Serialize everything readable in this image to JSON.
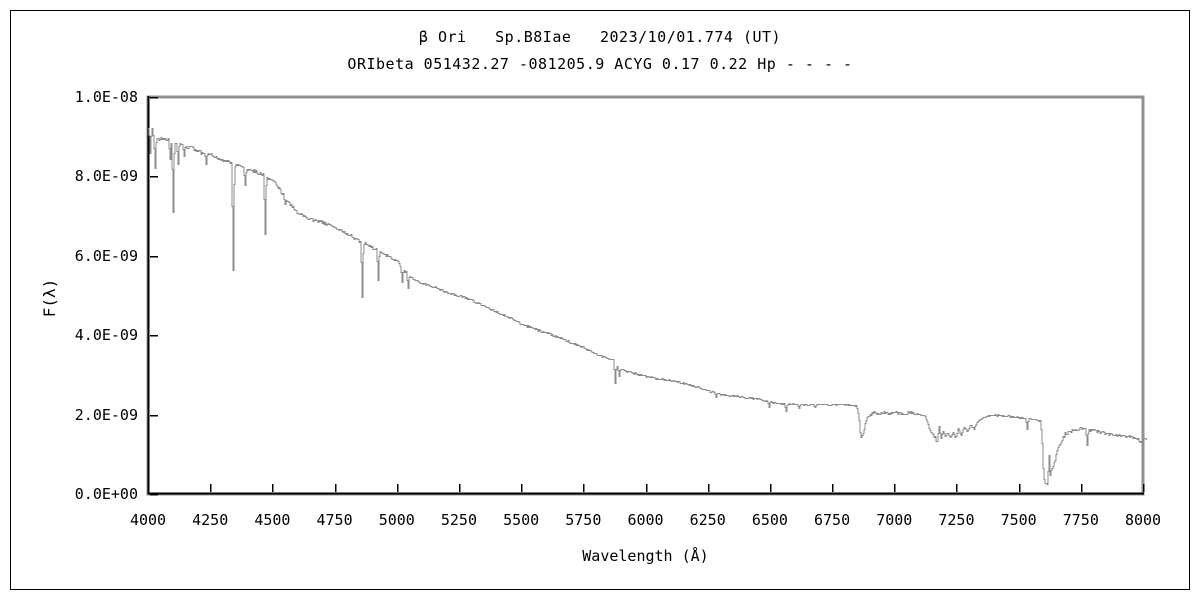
{
  "window": {
    "background": "#ffffff",
    "border_color": "#000000",
    "text_color": "#000000"
  },
  "chart_data": {
    "type": "line",
    "title": "β Ori   Sp.B8Iae   2023/10/01.774 (UT)",
    "subtitle": "ORIbeta 051432.27 -081205.9 ACYG 0.17 0.22 Hp - - - -",
    "xlabel": "Wavelength (Å)",
    "ylabel": "F(λ)",
    "xlim": [
      4000,
      8000
    ],
    "ylim": [
      0,
      1e-08
    ],
    "x_ticks": [
      4000,
      4250,
      4500,
      4750,
      5000,
      5250,
      5500,
      5750,
      6000,
      6250,
      6500,
      6750,
      7000,
      7250,
      7500,
      7750,
      8000
    ],
    "y_ticks": [
      {
        "value": 0,
        "label": "0.0E+00"
      },
      {
        "value": 2e-09,
        "label": "2.0E-09"
      },
      {
        "value": 4e-09,
        "label": "4.0E-09"
      },
      {
        "value": 6e-09,
        "label": "6.0E-09"
      },
      {
        "value": 8e-09,
        "label": "8.0E-09"
      },
      {
        "value": 1e-08,
        "label": "1.0E-08"
      }
    ],
    "grid": false,
    "legend": false,
    "line_color": "#8c8c8c",
    "frame_color": "#909090",
    "axis_color": "#000000",
    "flux_scale": 1e-09,
    "continuum_points": [
      [
        4000,
        9.3
      ],
      [
        4008,
        9.0
      ],
      [
        4016,
        9.2
      ],
      [
        4024,
        8.95
      ],
      [
        4032,
        9.05
      ],
      [
        4040,
        8.9
      ],
      [
        4048,
        9.0
      ],
      [
        4056,
        8.92
      ],
      [
        4064,
        8.96
      ],
      [
        4080,
        8.92
      ],
      [
        4100,
        8.88
      ],
      [
        4120,
        8.84
      ],
      [
        4140,
        8.8
      ],
      [
        4160,
        8.76
      ],
      [
        4180,
        8.7
      ],
      [
        4200,
        8.64
      ],
      [
        4225,
        8.6
      ],
      [
        4250,
        8.56
      ],
      [
        4275,
        8.48
      ],
      [
        4300,
        8.42
      ],
      [
        4330,
        8.36
      ],
      [
        4360,
        8.28
      ],
      [
        4390,
        8.22
      ],
      [
        4420,
        8.16
      ],
      [
        4450,
        8.08
      ],
      [
        4480,
        8.0
      ],
      [
        4500,
        7.92
      ],
      [
        4520,
        7.78
      ],
      [
        4540,
        7.58
      ],
      [
        4560,
        7.42
      ],
      [
        4580,
        7.25
      ],
      [
        4605,
        7.08
      ],
      [
        4630,
        7.0
      ],
      [
        4660,
        6.92
      ],
      [
        4700,
        6.85
      ],
      [
        4740,
        6.76
      ],
      [
        4780,
        6.62
      ],
      [
        4820,
        6.5
      ],
      [
        4850,
        6.38
      ],
      [
        4880,
        6.28
      ],
      [
        4910,
        6.18
      ],
      [
        4940,
        6.08
      ],
      [
        4970,
        5.98
      ],
      [
        5000,
        5.88
      ],
      [
        5030,
        5.62
      ],
      [
        5060,
        5.45
      ],
      [
        5100,
        5.32
      ],
      [
        5150,
        5.22
      ],
      [
        5200,
        5.08
      ],
      [
        5250,
        5.0
      ],
      [
        5300,
        4.9
      ],
      [
        5350,
        4.75
      ],
      [
        5400,
        4.6
      ],
      [
        5450,
        4.46
      ],
      [
        5500,
        4.3
      ],
      [
        5540,
        4.2
      ],
      [
        5580,
        4.1
      ],
      [
        5620,
        4.02
      ],
      [
        5660,
        3.93
      ],
      [
        5700,
        3.83
      ],
      [
        5740,
        3.72
      ],
      [
        5780,
        3.6
      ],
      [
        5820,
        3.47
      ],
      [
        5855,
        3.4
      ],
      [
        5870,
        3.37
      ],
      [
        5882,
        3.25
      ],
      [
        5895,
        3.15
      ],
      [
        5915,
        3.1
      ],
      [
        5950,
        3.05
      ],
      [
        5985,
        3.0
      ],
      [
        6020,
        2.95
      ],
      [
        6060,
        2.9
      ],
      [
        6100,
        2.87
      ],
      [
        6150,
        2.8
      ],
      [
        6200,
        2.72
      ],
      [
        6250,
        2.62
      ],
      [
        6300,
        2.52
      ],
      [
        6350,
        2.48
      ],
      [
        6400,
        2.45
      ],
      [
        6450,
        2.4
      ],
      [
        6500,
        2.33
      ],
      [
        6540,
        2.28
      ],
      [
        6580,
        2.27
      ],
      [
        6620,
        2.26
      ],
      [
        6660,
        2.26
      ],
      [
        6700,
        2.27
      ],
      [
        6740,
        2.26
      ],
      [
        6780,
        2.26
      ],
      [
        6820,
        2.25
      ],
      [
        6850,
        2.23
      ],
      [
        6858,
        2.0
      ],
      [
        6864,
        1.55
      ],
      [
        6870,
        1.42
      ],
      [
        6876,
        1.52
      ],
      [
        6884,
        1.8
      ],
      [
        6892,
        1.95
      ],
      [
        6902,
        2.0
      ],
      [
        6920,
        2.06
      ],
      [
        6940,
        2.03
      ],
      [
        6960,
        2.06
      ],
      [
        6980,
        2.03
      ],
      [
        7005,
        2.06
      ],
      [
        7030,
        2.04
      ],
      [
        7060,
        2.06
      ],
      [
        7090,
        2.03
      ],
      [
        7115,
        2.0
      ],
      [
        7130,
        1.88
      ],
      [
        7145,
        1.6
      ],
      [
        7155,
        1.5
      ],
      [
        7164,
        1.42
      ],
      [
        7172,
        1.32
      ],
      [
        7180,
        1.68
      ],
      [
        7188,
        1.4
      ],
      [
        7196,
        1.6
      ],
      [
        7205,
        1.42
      ],
      [
        7215,
        1.56
      ],
      [
        7225,
        1.4
      ],
      [
        7235,
        1.6
      ],
      [
        7245,
        1.44
      ],
      [
        7256,
        1.65
      ],
      [
        7268,
        1.5
      ],
      [
        7280,
        1.7
      ],
      [
        7292,
        1.58
      ],
      [
        7305,
        1.75
      ],
      [
        7320,
        1.68
      ],
      [
        7336,
        1.85
      ],
      [
        7352,
        1.92
      ],
      [
        7376,
        1.98
      ],
      [
        7400,
        2.0
      ],
      [
        7430,
        1.98
      ],
      [
        7460,
        1.97
      ],
      [
        7492,
        1.95
      ],
      [
        7520,
        1.92
      ],
      [
        7548,
        1.9
      ],
      [
        7570,
        1.88
      ],
      [
        7586,
        1.84
      ],
      [
        7592,
        1.3
      ],
      [
        7597,
        0.5
      ],
      [
        7603,
        0.4
      ],
      [
        7609,
        0.28
      ],
      [
        7615,
        0.2
      ],
      [
        7619,
        0.35
      ],
      [
        7623,
        1.15
      ],
      [
        7627,
        0.48
      ],
      [
        7633,
        0.6
      ],
      [
        7641,
        0.75
      ],
      [
        7649,
        0.92
      ],
      [
        7657,
        1.1
      ],
      [
        7666,
        1.25
      ],
      [
        7676,
        1.4
      ],
      [
        7686,
        1.5
      ],
      [
        7700,
        1.56
      ],
      [
        7716,
        1.6
      ],
      [
        7732,
        1.63
      ],
      [
        7752,
        1.66
      ],
      [
        7772,
        1.67
      ],
      [
        7792,
        1.62
      ],
      [
        7815,
        1.58
      ],
      [
        7840,
        1.56
      ],
      [
        7865,
        1.52
      ],
      [
        7890,
        1.5
      ],
      [
        7915,
        1.48
      ],
      [
        7940,
        1.46
      ],
      [
        7965,
        1.42
      ],
      [
        7984,
        1.38
      ],
      [
        7996,
        1.33
      ],
      [
        8004,
        1.42
      ],
      [
        8016,
        1.39
      ]
    ],
    "absorption_lines": [
      [
        4009,
        8.6
      ],
      [
        4026,
        8.2
      ],
      [
        4089,
        8.45
      ],
      [
        4101,
        7.1
      ],
      [
        4121,
        8.3
      ],
      [
        4144,
        8.52
      ],
      [
        4233,
        8.32
      ],
      [
        4340,
        5.65
      ],
      [
        4388,
        7.78
      ],
      [
        4471,
        6.55
      ],
      [
        4553,
        7.3
      ],
      [
        4861,
        4.96
      ],
      [
        4922,
        5.4
      ],
      [
        5018,
        5.35
      ],
      [
        5042,
        5.18
      ],
      [
        5876,
        2.8
      ],
      [
        5890,
        2.98
      ],
      [
        6283,
        2.45
      ],
      [
        6497,
        2.18
      ],
      [
        6563,
        2.08
      ],
      [
        6614,
        2.16
      ],
      [
        6680,
        2.18
      ],
      [
        7533,
        1.63
      ],
      [
        7774,
        1.23
      ],
      [
        7988,
        1.3
      ]
    ]
  }
}
